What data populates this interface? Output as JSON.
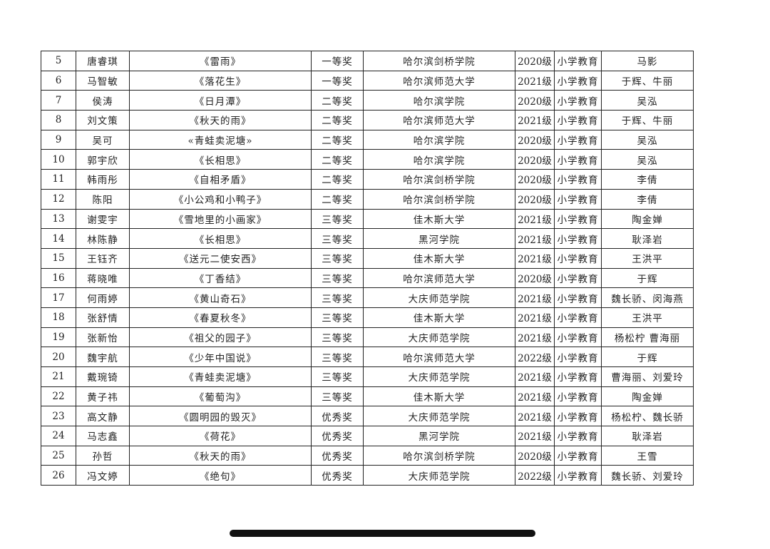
{
  "table": {
    "rows": [
      [
        "5",
        "唐睿琪",
        "《雷雨》",
        "一等奖",
        "哈尔滨剑桥学院",
        "2020级",
        "小学教育",
        "马影"
      ],
      [
        "6",
        "马智敏",
        "《落花生》",
        "一等奖",
        "哈尔滨师范大学",
        "2021级",
        "小学教育",
        "于辉、牛丽"
      ],
      [
        "7",
        "侯涛",
        "《日月潭》",
        "二等奖",
        "哈尔滨学院",
        "2020级",
        "小学教育",
        "吴泓"
      ],
      [
        "8",
        "刘文策",
        "《秋天的雨》",
        "二等奖",
        "哈尔滨师范大学",
        "2021级",
        "小学教育",
        "于辉、牛丽"
      ],
      [
        "9",
        "吴可",
        "«青蛙卖泥塘»",
        "二等奖",
        "哈尔滨学院",
        "2020级",
        "小学教育",
        "吴泓"
      ],
      [
        "10",
        "郭宇欣",
        "《长相思》",
        "二等奖",
        "哈尔滨学院",
        "2020级",
        "小学教育",
        "吴泓"
      ],
      [
        "11",
        "韩雨彤",
        "《自相矛盾》",
        "二等奖",
        "哈尔滨剑桥学院",
        "2020级",
        "小学教育",
        "李倩"
      ],
      [
        "12",
        "陈阳",
        "《小公鸡和小鸭子》",
        "二等奖",
        "哈尔滨剑桥学院",
        "2020级",
        "小学教育",
        "李倩"
      ],
      [
        "13",
        "谢雯宇",
        "《雪地里的小画家》",
        "三等奖",
        "佳木斯大学",
        "2021级",
        "小学教育",
        "陶金婵"
      ],
      [
        "14",
        "林陈静",
        "《长相思》",
        "三等奖",
        "黑河学院",
        "2021级",
        "小学教育",
        "耿泽岩"
      ],
      [
        "15",
        "王钰齐",
        "《送元二使安西》",
        "三等奖",
        "佳木斯大学",
        "2021级",
        "小学教育",
        "王洪平"
      ],
      [
        "16",
        "蒋晓唯",
        "《丁香结》",
        "三等奖",
        "哈尔滨师范大学",
        "2020级",
        "小学教育",
        "于辉"
      ],
      [
        "17",
        "何雨婷",
        "《黄山奇石》",
        "三等奖",
        "大庆师范学院",
        "2021级",
        "小学教育",
        "魏长骄、闵海燕"
      ],
      [
        "18",
        "张舒情",
        "《春夏秋冬》",
        "三等奖",
        "佳木斯大学",
        "2021级",
        "小学教育",
        "王洪平"
      ],
      [
        "19",
        "张新怡",
        "《祖父的园子》",
        "三等奖",
        "大庆师范学院",
        "2021级",
        "小学教育",
        "杨松柠 曹海丽"
      ],
      [
        "20",
        "魏宇航",
        "《少年中国说》",
        "三等奖",
        "哈尔滨师范大学",
        "2022级",
        "小学教育",
        "于辉"
      ],
      [
        "21",
        "戴琬锜",
        "《青蛙卖泥塘》",
        "三等奖",
        "大庆师范学院",
        "2021级",
        "小学教育",
        "曹海丽、刘爱玲"
      ],
      [
        "22",
        "黄子祎",
        "《葡萄沟》",
        "三等奖",
        "佳木斯大学",
        "2021级",
        "小学教育",
        "陶金婵"
      ],
      [
        "23",
        "高文静",
        "《圆明园的毁灭》",
        "优秀奖",
        "大庆师范学院",
        "2021级",
        "小学教育",
        "杨松柠、魏长骄"
      ],
      [
        "24",
        "马志鑫",
        "《荷花》",
        "优秀奖",
        "黑河学院",
        "2021级",
        "小学教育",
        "耿泽岩"
      ],
      [
        "25",
        "孙哲",
        "《秋天的雨》",
        "优秀奖",
        "哈尔滨剑桥学院",
        "2020级",
        "小学教育",
        "王雪"
      ],
      [
        "26",
        "冯文婷",
        "《绝句》",
        "优秀奖",
        "大庆师范学院",
        "2022级",
        "小学教育",
        "魏长骄、刘爱玲"
      ]
    ]
  }
}
